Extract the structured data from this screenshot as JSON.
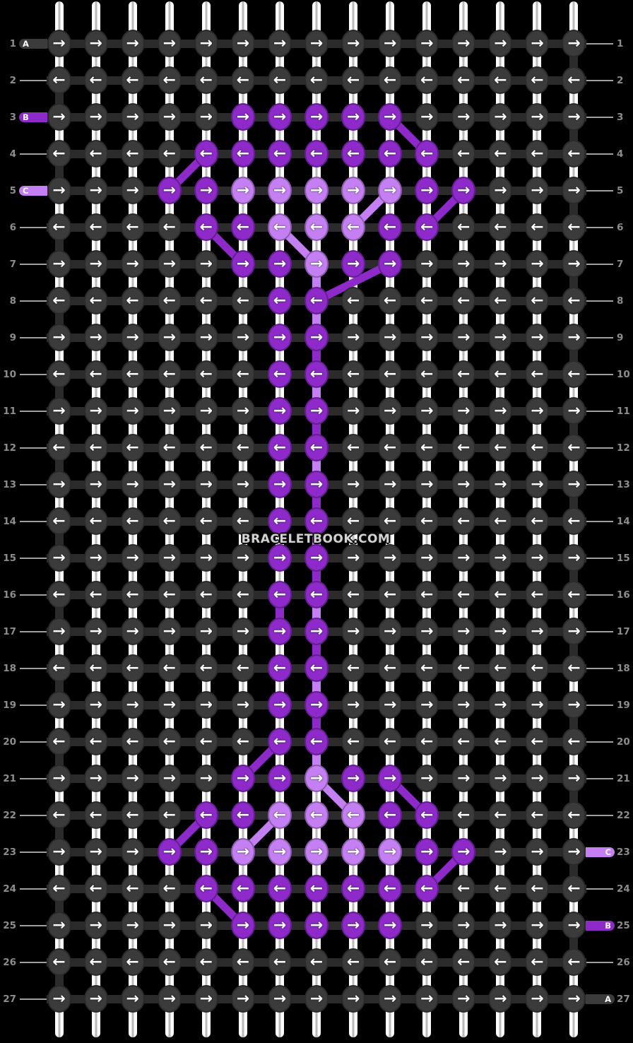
{
  "watermark": "BRACELETBOOK.COM",
  "palette": {
    "A": "#3b3b3b",
    "B": "#8d2ac9",
    "C": "#c47ff2"
  },
  "ui": {
    "background": "#000000",
    "connector_dark": "#2b2b2b",
    "string_white": "#ffffff",
    "string_core": "#b9b9b9",
    "arrow_color": "#ffffff",
    "number_color": "#8d8d8d",
    "guide_line_color": "#9e9e9e",
    "watermark_color": "#d2d2d2"
  },
  "rows": 27,
  "cols": 15,
  "row_numbers": [
    1,
    2,
    3,
    4,
    5,
    6,
    7,
    8,
    9,
    10,
    11,
    12,
    13,
    14,
    15,
    16,
    17,
    18,
    19,
    20,
    21,
    22,
    23,
    24,
    25,
    26,
    27
  ],
  "row_arrows": [
    "right",
    "left",
    "right",
    "left",
    "right",
    "left",
    "right",
    "left",
    "right",
    "left",
    "right",
    "left",
    "right",
    "left",
    "right",
    "left",
    "right",
    "left",
    "right",
    "left",
    "right",
    "left",
    "right",
    "left",
    "right",
    "left",
    "right"
  ],
  "arrow_glyphs": {
    "right": "→",
    "left": "←"
  },
  "knots": [
    "AAAAAAAAAAAAAAA",
    "AAAAAAAAAAAAAAA",
    "AAAAABBBBBAAAAA",
    "AAAABBBBBBBAAAA",
    "AAABBCCCCCBBAAA",
    "AAAABBCCCBBAAAA",
    "AAAAABBCBBAAAAA",
    "AAAAAABBAAAAAAA",
    "AAAAAABBAAAAAAA",
    "AAAAAABBAAAAAAA",
    "AAAAAABBAAAAAAA",
    "AAAAAABBAAAAAAA",
    "AAAAAABBAAAAAAA",
    "AAAAAABBAAAAAAA",
    "AAAAAABBAAAAAAA",
    "AAAAAABBAAAAAAA",
    "AAAAAABBAAAAAAA",
    "AAAAAABBAAAAAAA",
    "AAAAAABBAAAAAAA",
    "AAAAAABBAAAAAAA",
    "AAAAABBCBBAAAAA",
    "AAAABBCCCBBAAAA",
    "AAABBCCCCCBBAAA",
    "AAAABBBBBBBAAAA",
    "AAAAABBBBBAAAAA",
    "AAAAAAAAAAAAAAA",
    "AAAAAAAAAAAAAAA"
  ],
  "left_labels": [
    {
      "row": 1,
      "letter": "A",
      "color": "A"
    },
    {
      "row": 3,
      "letter": "B",
      "color": "B"
    },
    {
      "row": 5,
      "letter": "C",
      "color": "C"
    }
  ],
  "right_labels": [
    {
      "row": 23,
      "letter": "C",
      "color": "C"
    },
    {
      "row": 25,
      "letter": "B",
      "color": "B"
    },
    {
      "row": 27,
      "letter": "A",
      "color": "A"
    }
  ],
  "diagonals": [
    {
      "r1": 3,
      "c1": 10,
      "r2": 4,
      "c2": 11,
      "color": "B"
    },
    {
      "r1": 4,
      "c1": 5,
      "r2": 5,
      "c2": 4,
      "color": "B"
    },
    {
      "r1": 5,
      "c1": 10,
      "r2": 6,
      "c2": 9,
      "color": "C"
    },
    {
      "r1": 5,
      "c1": 12,
      "r2": 6,
      "c2": 11,
      "color": "B"
    },
    {
      "r1": 6,
      "c1": 5,
      "r2": 7,
      "c2": 6,
      "color": "B"
    },
    {
      "r1": 6,
      "c1": 7,
      "r2": 7,
      "c2": 8,
      "color": "C"
    },
    {
      "r1": 7,
      "c1": 10,
      "r2": 8,
      "c2": 8,
      "color": "B"
    },
    {
      "r1": 20,
      "c1": 7,
      "r2": 21,
      "c2": 6,
      "color": "B"
    },
    {
      "r1": 21,
      "c1": 8,
      "r2": 22,
      "c2": 9,
      "color": "C"
    },
    {
      "r1": 21,
      "c1": 10,
      "r2": 22,
      "c2": 11,
      "color": "B"
    },
    {
      "r1": 22,
      "c1": 5,
      "r2": 23,
      "c2": 4,
      "color": "B"
    },
    {
      "r1": 22,
      "c1": 7,
      "r2": 23,
      "c2": 6,
      "color": "C"
    },
    {
      "r1": 23,
      "c1": 12,
      "r2": 24,
      "c2": 11,
      "color": "B"
    },
    {
      "r1": 24,
      "c1": 5,
      "r2": 25,
      "c2": 6,
      "color": "B"
    }
  ],
  "vertical_overrides": [
    {
      "col": 8,
      "after_row": 7,
      "color": "C"
    },
    {
      "col": 8,
      "after_row": 8,
      "color": "C"
    },
    {
      "col": 8,
      "after_row": 9,
      "color": "B"
    },
    {
      "col": 8,
      "after_row": 10,
      "color": "C"
    },
    {
      "col": 8,
      "after_row": 11,
      "color": "B"
    },
    {
      "col": 8,
      "after_row": 12,
      "color": "C"
    },
    {
      "col": 8,
      "after_row": 13,
      "color": "B"
    },
    {
      "col": 8,
      "after_row": 14,
      "color": "C"
    },
    {
      "col": 8,
      "after_row": 15,
      "color": "B"
    },
    {
      "col": 8,
      "after_row": 16,
      "color": "C"
    },
    {
      "col": 8,
      "after_row": 17,
      "color": "B"
    },
    {
      "col": 8,
      "after_row": 18,
      "color": "C"
    },
    {
      "col": 8,
      "after_row": 19,
      "color": "B"
    },
    {
      "col": 8,
      "after_row": 20,
      "color": "C"
    },
    {
      "col": 7,
      "after_row": 16,
      "color": "B"
    }
  ],
  "edge_rules": {
    "left_col_dark_below": "even",
    "right_col_dark_below": "odd"
  }
}
